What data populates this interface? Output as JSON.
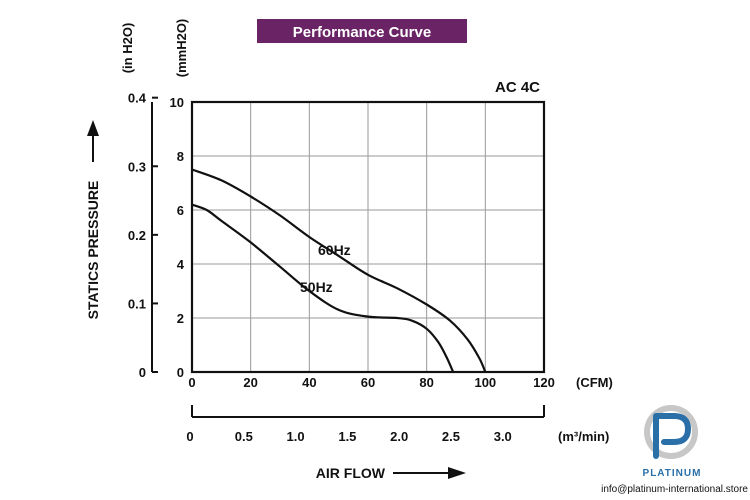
{
  "chart_data": {
    "type": "line",
    "title": "Performance Curve",
    "model": "AC 4C",
    "xlabel": "AIR FLOW",
    "ylabel": "STATICS PRESSURE",
    "x_unit_primary": "(CFM)",
    "x_unit_secondary": "(m³/min)",
    "y_unit_primary": "(mmH2O)",
    "y_unit_secondary": "(in H2O)",
    "xlim": [
      0,
      120
    ],
    "ylim": [
      0,
      10
    ],
    "x_ticks": [
      "0",
      "20",
      "40",
      "60",
      "80",
      "100",
      "120"
    ],
    "x_ticks_m3": [
      "0",
      "0.5",
      "1.0",
      "1.5",
      "2.0",
      "2.5",
      "3.0"
    ],
    "y_ticks_mm": [
      "0",
      "2",
      "4",
      "6",
      "8",
      "10"
    ],
    "y_ticks_in": [
      "0",
      "0.1",
      "0.2",
      "0.3",
      "0.4"
    ],
    "grid": true,
    "series": [
      {
        "name": "60Hz",
        "x": [
          0,
          10,
          20,
          30,
          40,
          50,
          60,
          70,
          80,
          88,
          94,
          98,
          100
        ],
        "y": [
          7.5,
          7.1,
          6.5,
          5.8,
          5.0,
          4.3,
          3.6,
          3.1,
          2.5,
          1.9,
          1.2,
          0.5,
          0
        ]
      },
      {
        "name": "50Hz",
        "x": [
          0,
          5,
          10,
          20,
          30,
          40,
          50,
          60,
          70,
          75,
          80,
          84,
          87,
          89
        ],
        "y": [
          6.2,
          6.0,
          5.6,
          4.8,
          3.9,
          3.0,
          2.3,
          2.05,
          2.0,
          1.9,
          1.6,
          1.1,
          0.5,
          0
        ]
      }
    ],
    "annotations": [
      "60Hz",
      "50Hz"
    ]
  },
  "branding": {
    "logo_name": "PLATINUM",
    "contact": "info@platinum-international.store"
  }
}
